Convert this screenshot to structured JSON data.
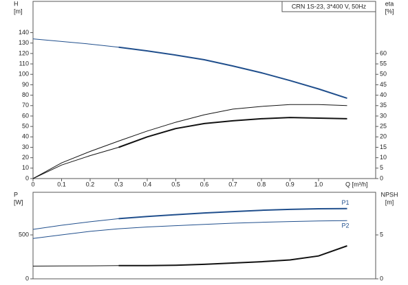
{
  "chart_data": [
    {
      "type": "line",
      "title": "CRN 1S-23, 3*400 V, 50Hz",
      "ylabel": [
        "H",
        "[m]"
      ],
      "y2label": [
        "eta",
        "[%]"
      ],
      "xlabel": "Q [m³/h]",
      "x": [
        0,
        0.1,
        0.2,
        0.3,
        0.4,
        0.5,
        0.6,
        0.7,
        0.8,
        0.9,
        1.0,
        1.1
      ],
      "xlim": [
        0,
        1.2
      ],
      "xticks": [
        0,
        0.1,
        0.2,
        0.3,
        0.4,
        0.5,
        0.6,
        0.7,
        0.8,
        0.9,
        {
          "value": 1,
          "label": "1.0"
        }
      ],
      "ylim": [
        0,
        170
      ],
      "yticks": [
        0,
        10,
        20,
        30,
        40,
        50,
        60,
        70,
        80,
        90,
        100,
        110,
        120,
        130,
        140
      ],
      "y2lim": [
        0,
        85
      ],
      "y2ticks": [
        0,
        5,
        10,
        15,
        20,
        25,
        30,
        35,
        40,
        45,
        50,
        55,
        60
      ],
      "series": [
        {
          "color": "#1f4e8c",
          "width": 1,
          "values": [
            134,
            131.5,
            129,
            126,
            null,
            null,
            null,
            null,
            null,
            null,
            null,
            null
          ]
        },
        {
          "color": "#1f4e8c",
          "width": 2,
          "values": [
            null,
            null,
            null,
            126,
            122.5,
            118.5,
            114,
            108,
            101.5,
            94,
            86,
            77
          ]
        },
        {
          "color": "#111111",
          "width": 1,
          "axis": "y2",
          "values": [
            0,
            7.5,
            13,
            18,
            22.8,
            27,
            30.6,
            33.3,
            34.6,
            35.5,
            35.5,
            35
          ]
        },
        {
          "color": "#111111",
          "width": 1,
          "axis": "y2",
          "values": [
            0,
            6.5,
            11,
            15,
            null,
            null,
            null,
            null,
            null,
            null,
            null,
            null
          ]
        },
        {
          "color": "#111111",
          "width": 2,
          "axis": "y2",
          "values": [
            null,
            null,
            null,
            15,
            20,
            24,
            26.4,
            27.7,
            28.7,
            29.3,
            29,
            28.7
          ]
        }
      ]
    },
    {
      "type": "line",
      "ylabel": [
        "P",
        "[W]"
      ],
      "y2label": [
        "NPSH",
        "[m]"
      ],
      "x": [
        0,
        0.1,
        0.2,
        0.3,
        0.4,
        0.5,
        0.6,
        0.7,
        0.8,
        0.9,
        1.0,
        1.1
      ],
      "xlim": [
        0,
        1.2
      ],
      "ylim": [
        0,
        985
      ],
      "yticks": [
        0,
        500
      ],
      "y2lim": [
        0,
        9.85
      ],
      "y2ticks": [
        0,
        5
      ],
      "series": [
        {
          "color": "#1f4e8c",
          "width": 1,
          "values": [
            563,
            610,
            650,
            685,
            null,
            null,
            null,
            null,
            null,
            null,
            null,
            null
          ]
        },
        {
          "name": "P1",
          "color": "#1f4e8c",
          "width": 2,
          "values": [
            null,
            null,
            null,
            685,
            710,
            730,
            750,
            765,
            780,
            790,
            797,
            800
          ]
        },
        {
          "name": "P2",
          "color": "#1f4e8c",
          "width": 1,
          "values": [
            460,
            500,
            540,
            570,
            590,
            605,
            620,
            633,
            643,
            652,
            658,
            662
          ]
        },
        {
          "color": "#111111",
          "width": 1,
          "axis": "y2",
          "values": [
            1.45,
            1.47,
            1.48,
            1.5,
            null,
            null,
            null,
            null,
            null,
            null,
            null,
            null
          ]
        },
        {
          "color": "#111111",
          "width": 2,
          "axis": "y2",
          "values": [
            null,
            null,
            null,
            1.5,
            1.5,
            1.55,
            1.65,
            1.8,
            1.95,
            2.15,
            2.6,
            3.75
          ]
        }
      ]
    }
  ]
}
